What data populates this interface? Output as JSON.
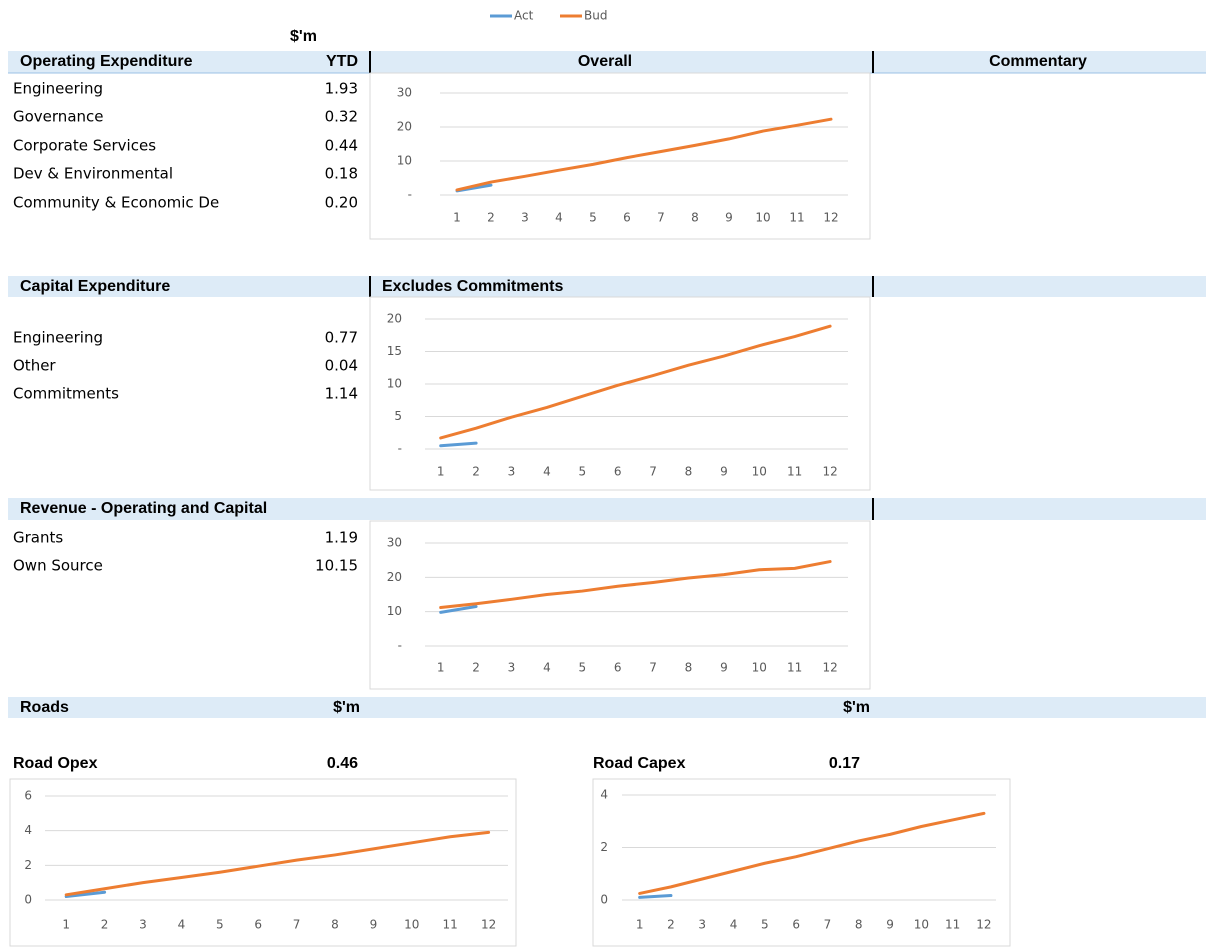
{
  "units": "$'m",
  "opex": {
    "title": "Operating Expenditure",
    "column": "YTD",
    "chart_title": "Overall",
    "commentary": "Commentary",
    "rows": [
      {
        "label": "Engineering",
        "value": "1.93"
      },
      {
        "label": "Governance",
        "value": "0.32"
      },
      {
        "label": "Corporate Services",
        "value": "0.44"
      },
      {
        "label": "Dev & Environmental",
        "value": "0.18"
      },
      {
        "label": "Community & Economic De",
        "value": "0.20"
      }
    ]
  },
  "capex": {
    "title": "Capital Expenditure",
    "chart_title": "Excludes Commitments",
    "rows": [
      {
        "label": "Engineering",
        "value": "0.77"
      },
      {
        "label": "Other",
        "value": "0.04"
      },
      {
        "label": "Commitments",
        "value": "1.14"
      }
    ]
  },
  "revenue": {
    "title": "Revenue - Operating and Capital",
    "rows": [
      {
        "label": "Grants",
        "value": "1.19"
      },
      {
        "label": "Own Source",
        "value": "10.15"
      }
    ]
  },
  "roads": {
    "title": "Roads",
    "units_left": "$'m",
    "units_right": "$'m",
    "opex": {
      "title": "Road Opex",
      "value": "0.46"
    },
    "capex": {
      "title": "Road Capex",
      "value": "0.17"
    }
  },
  "chart_data": [
    {
      "type": "line",
      "categories": [
        1,
        2,
        3,
        4,
        5,
        6,
        7,
        8,
        9,
        10,
        11,
        12
      ],
      "ylim": [
        0,
        30
      ],
      "yticks": [
        {
          "value": 0,
          "label": "-"
        },
        10,
        20,
        30
      ],
      "grid": true,
      "series": [
        {
          "name": "Act",
          "color": "#5b9bd5",
          "values": [
            1.2,
            2.9,
            null,
            null,
            null,
            null,
            null,
            null,
            null,
            null,
            null,
            null
          ]
        },
        {
          "name": "Bud",
          "color": "#ed7d31",
          "values": [
            1.5,
            3.8,
            5.5,
            7.3,
            9.0,
            11.0,
            12.8,
            14.6,
            16.5,
            18.8,
            20.5,
            22.3
          ]
        }
      ]
    },
    {
      "type": "line",
      "categories": [
        1,
        2,
        3,
        4,
        5,
        6,
        7,
        8,
        9,
        10,
        11,
        12
      ],
      "ylim": [
        0,
        20
      ],
      "yticks": [
        {
          "value": 0,
          "label": "-"
        },
        5,
        10,
        15,
        20
      ],
      "grid": true,
      "series": [
        {
          "color": "#5b9bd5",
          "values": [
            0.5,
            0.9,
            null,
            null,
            null,
            null,
            null,
            null,
            null,
            null,
            null,
            null
          ]
        },
        {
          "color": "#ed7d31",
          "values": [
            1.7,
            3.2,
            4.9,
            6.4,
            8.1,
            9.8,
            11.3,
            12.9,
            14.3,
            15.9,
            17.3,
            18.9
          ]
        }
      ]
    },
    {
      "type": "line",
      "categories": [
        1,
        2,
        3,
        4,
        5,
        6,
        7,
        8,
        9,
        10,
        11,
        12
      ],
      "ylim": [
        0,
        30
      ],
      "yticks": [
        {
          "value": 0,
          "label": "-"
        },
        10,
        20,
        30
      ],
      "grid": true,
      "series": [
        {
          "color": "#5b9bd5",
          "values": [
            9.8,
            11.5,
            null,
            null,
            null,
            null,
            null,
            null,
            null,
            null,
            null,
            null
          ]
        },
        {
          "color": "#ed7d31",
          "values": [
            11.2,
            12.3,
            13.6,
            15.0,
            16.0,
            17.4,
            18.5,
            19.8,
            20.8,
            22.2,
            22.6,
            24.6
          ]
        }
      ]
    },
    {
      "type": "line",
      "categories": [
        1,
        2,
        3,
        4,
        5,
        6,
        7,
        8,
        9,
        10,
        11,
        12
      ],
      "ylim": [
        0,
        6
      ],
      "yticks": [
        0,
        2,
        4,
        6
      ],
      "grid": true,
      "series": [
        {
          "color": "#5b9bd5",
          "values": [
            0.2,
            0.45,
            null,
            null,
            null,
            null,
            null,
            null,
            null,
            null,
            null,
            null
          ]
        },
        {
          "color": "#ed7d31",
          "values": [
            0.3,
            0.65,
            1.0,
            1.3,
            1.6,
            1.95,
            2.3,
            2.6,
            2.95,
            3.3,
            3.65,
            3.9
          ]
        }
      ]
    },
    {
      "type": "line",
      "categories": [
        1,
        2,
        3,
        4,
        5,
        6,
        7,
        8,
        9,
        10,
        11,
        12
      ],
      "ylim": [
        0,
        4
      ],
      "yticks": [
        0,
        2,
        4
      ],
      "grid": true,
      "series": [
        {
          "color": "#5b9bd5",
          "values": [
            0.1,
            0.17,
            null,
            null,
            null,
            null,
            null,
            null,
            null,
            null,
            null,
            null
          ]
        },
        {
          "color": "#ed7d31",
          "values": [
            0.25,
            0.5,
            0.8,
            1.1,
            1.4,
            1.65,
            1.95,
            2.25,
            2.5,
            2.8,
            3.05,
            3.3
          ]
        }
      ]
    }
  ]
}
